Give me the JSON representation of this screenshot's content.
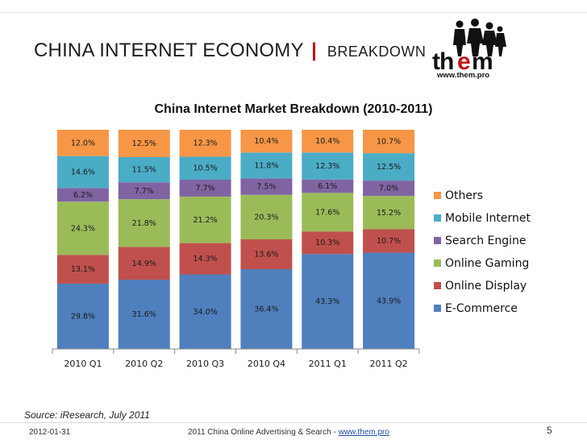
{
  "header": {
    "title": "CHINA INTERNET ECONOMY",
    "separator": "|",
    "subtitle": "BREAKDOWN"
  },
  "logo": {
    "text": "them",
    "url": "www.them.pro"
  },
  "chart_data": {
    "type": "bar",
    "stacked": true,
    "percent_stacked": true,
    "title": "China Internet Market Breakdown (2010-2011)",
    "xlabel": "",
    "ylabel": "",
    "categories": [
      "2010 Q1",
      "2010 Q2",
      "2010 Q3",
      "2010 Q4",
      "2011 Q1",
      "2011 Q2"
    ],
    "series": [
      {
        "name": "E-Commerce",
        "color": "#4f7fbd",
        "values": [
          29.8,
          31.6,
          34.0,
          36.4,
          43.3,
          43.9
        ],
        "labels": [
          "29.8%",
          "31.6%",
          "34.0%",
          "36.4%",
          "43.3%",
          "43.9%"
        ]
      },
      {
        "name": "Online Display",
        "color": "#c0504d",
        "values": [
          13.1,
          14.9,
          14.3,
          13.6,
          10.3,
          10.7
        ],
        "labels": [
          "13.1%",
          "14.9%",
          "14.3%",
          "13.6%",
          "10.3%",
          "10.7%"
        ]
      },
      {
        "name": "Online Gaming",
        "color": "#9bbb59",
        "values": [
          24.3,
          21.8,
          21.2,
          20.3,
          17.6,
          15.2
        ],
        "labels": [
          "24.3%",
          "21.8%",
          "21.2%",
          "20.3%",
          "17.6%",
          "15.2%"
        ]
      },
      {
        "name": "Search Engine",
        "color": "#8064a2",
        "values": [
          6.2,
          7.7,
          7.7,
          7.5,
          6.1,
          7.0
        ],
        "labels": [
          "6.2%",
          "7.7%",
          "7.7%",
          "7.5%",
          "6.1%",
          "7.0%"
        ]
      },
      {
        "name": "Mobile Internet",
        "color": "#4bacc6",
        "values": [
          14.6,
          11.5,
          10.5,
          11.8,
          12.3,
          12.5
        ],
        "labels": [
          "14.6%",
          "11.5%",
          "10.5%",
          "11.8%",
          "12.3%",
          "12.5%"
        ]
      },
      {
        "name": "Others",
        "color": "#f79646",
        "values": [
          12.0,
          12.5,
          12.3,
          10.4,
          10.4,
          10.7
        ],
        "labels": [
          "12.0%",
          "12.5%",
          "12.3%",
          "10.4%",
          "10.4%",
          "10.7%"
        ]
      }
    ],
    "legend_position": "right",
    "grid": false
  },
  "source": "Source: iResearch, July 2011",
  "footer": {
    "date": "2012-01-31",
    "center_text": "2011 China Online Advertising & Search - ",
    "link_text": "www.them.pro",
    "page": "5"
  }
}
